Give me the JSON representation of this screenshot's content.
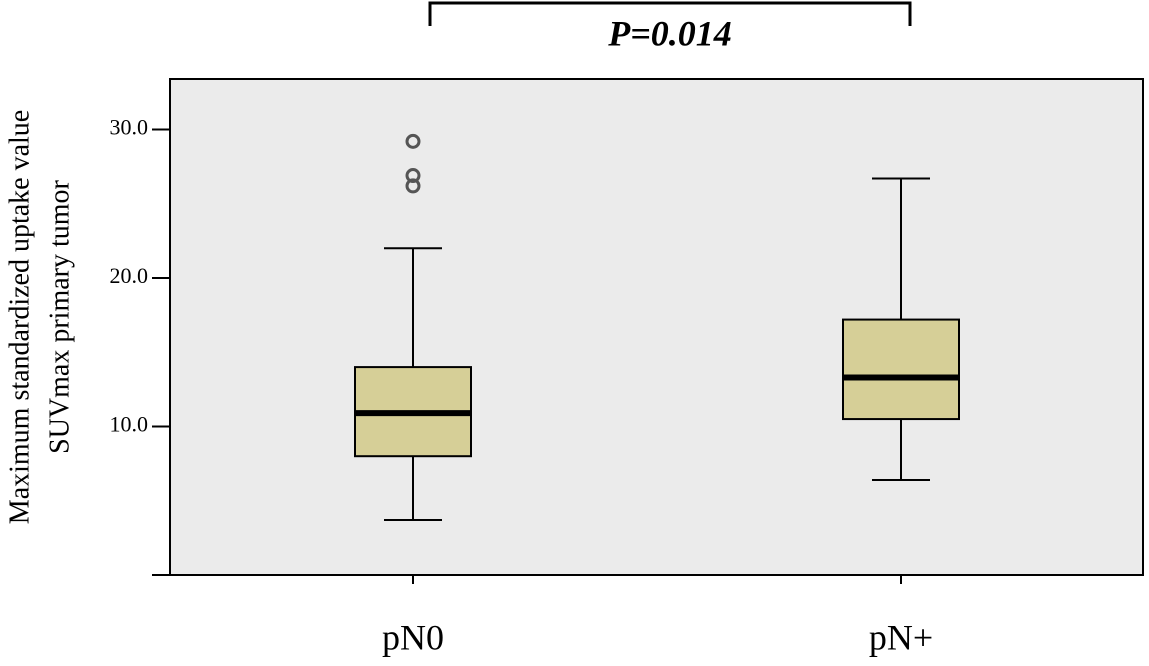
{
  "chart_data": {
    "type": "box",
    "annotation": "P=0.014",
    "y_label": [
      "Maximum standardized uptake value",
      "SUVmax primary tumor"
    ],
    "categories": [
      "pN0",
      "pN+"
    ],
    "boxes": [
      {
        "min": 3.7,
        "q1": 8.0,
        "median": 10.9,
        "q3": 14.0,
        "max": 22.0,
        "outliers": [
          29.2,
          26.9,
          26.2
        ]
      },
      {
        "min": 6.4,
        "q1": 10.5,
        "median": 13.3,
        "q3": 17.2,
        "max": 26.7,
        "outliers": []
      }
    ],
    "color": "#d6cf97",
    "background": "#ebebeb",
    "ylim": [
      0,
      33.4
    ],
    "yticks": [
      {
        "value": 10,
        "label": "10.0"
      },
      {
        "value": 20,
        "label": "20.0"
      },
      {
        "value": 30,
        "label": "30.0"
      }
    ]
  }
}
